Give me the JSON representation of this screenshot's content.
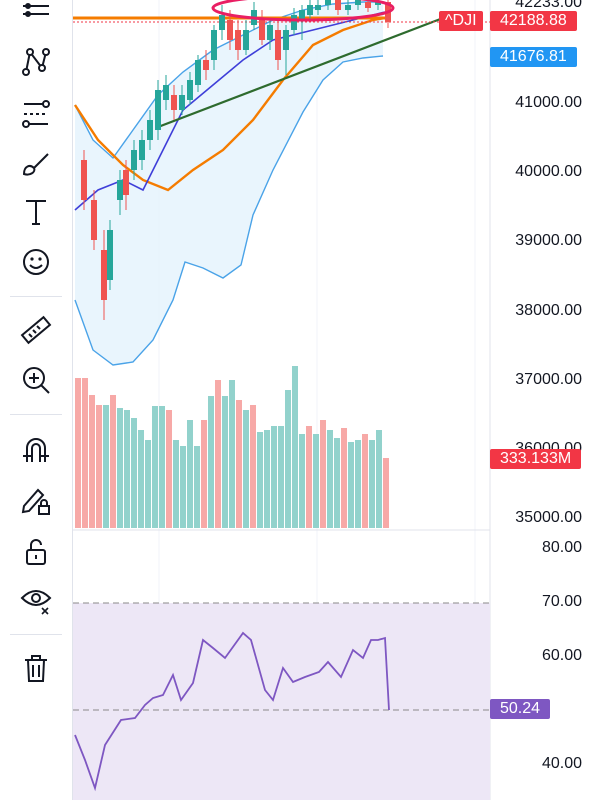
{
  "toolbar": {
    "tools": [
      {
        "name": "menu-lines-icon"
      },
      {
        "name": "pattern-tool-icon"
      },
      {
        "name": "fib-tool-icon"
      },
      {
        "name": "brush-tool-icon"
      },
      {
        "name": "text-tool-icon"
      },
      {
        "name": "emoji-tool-icon"
      },
      {
        "name": "ruler-tool-icon"
      },
      {
        "name": "zoom-in-icon"
      },
      {
        "name": "magnet-icon"
      },
      {
        "name": "lock-drawing-icon"
      },
      {
        "name": "unlock-icon"
      },
      {
        "name": "eye-hide-icon"
      },
      {
        "name": "trash-icon"
      }
    ]
  },
  "price_axis": {
    "labels": [
      "42233.00",
      "41000.00",
      "40000.00",
      "39000.00",
      "38000.00",
      "37000.00",
      "36000.00",
      "35000.00"
    ],
    "ticker_tag": "^DJI",
    "last_price": "42188.88",
    "ma_value": "41676.81",
    "volume_value": "333.133M"
  },
  "rsi_axis": {
    "labels": [
      "80.00",
      "70.00",
      "60.00",
      "40.00"
    ],
    "rsi_value": "50.24"
  },
  "colors": {
    "up": "#26a69a",
    "down": "#ef5350",
    "up_vol": "#92d2cc",
    "down_vol": "#f7a9a7",
    "bb_fill": "#e3f2fd",
    "bb_line": "#4aa3e8",
    "ema_orange": "#f57c00",
    "ma_blue": "#3f3fd9",
    "trend_green": "#2e6b2e",
    "rsi_line": "#7e57c2",
    "rsi_bg": "#ede7f6",
    "tag_red": "#f23645",
    "tag_blue": "#2196f3",
    "tag_purple": "#7e57c2"
  }
}
